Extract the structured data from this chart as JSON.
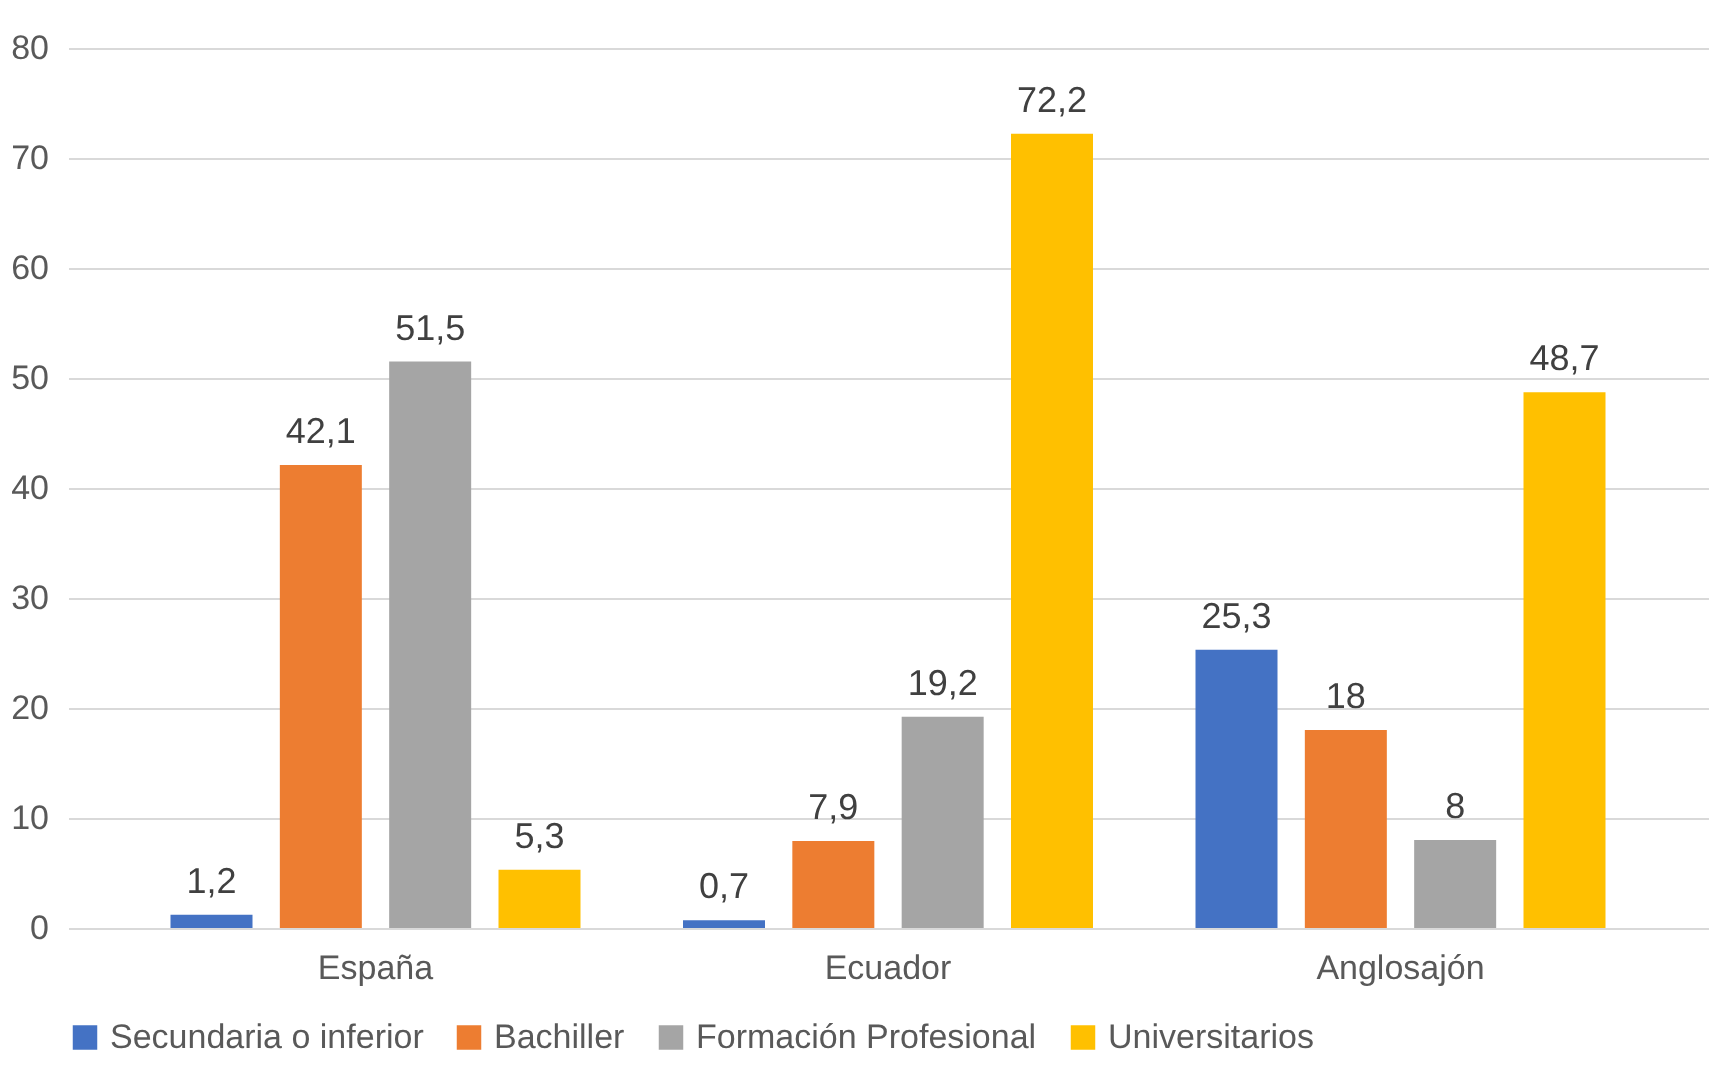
{
  "chart_data": {
    "type": "bar",
    "categories": [
      "España",
      "Ecuador",
      "Anglosajón"
    ],
    "series": [
      {
        "name": "Secundaria o inferior",
        "color": "#4472c4",
        "values": [
          1.2,
          0.7,
          25.3
        ],
        "value_labels": [
          "1,2",
          "0,7",
          "25,3"
        ]
      },
      {
        "name": "Bachiller",
        "color": "#ed7d31",
        "values": [
          42.1,
          7.9,
          18
        ],
        "value_labels": [
          "42,1",
          "7,9",
          "18"
        ]
      },
      {
        "name": "Formación Profesional",
        "color": "#a5a5a5",
        "values": [
          51.5,
          19.2,
          8
        ],
        "value_labels": [
          "51,5",
          "19,2",
          "8"
        ]
      },
      {
        "name": "Universitarios",
        "color": "#ffc000",
        "values": [
          5.3,
          72.2,
          48.7
        ],
        "value_labels": [
          "5,3",
          "72,2",
          "48,7"
        ]
      }
    ],
    "ylim": [
      0,
      80
    ],
    "yticks": [
      0,
      10,
      20,
      30,
      40,
      50,
      60,
      70,
      80
    ],
    "grid": "y",
    "legend": "bottom"
  }
}
